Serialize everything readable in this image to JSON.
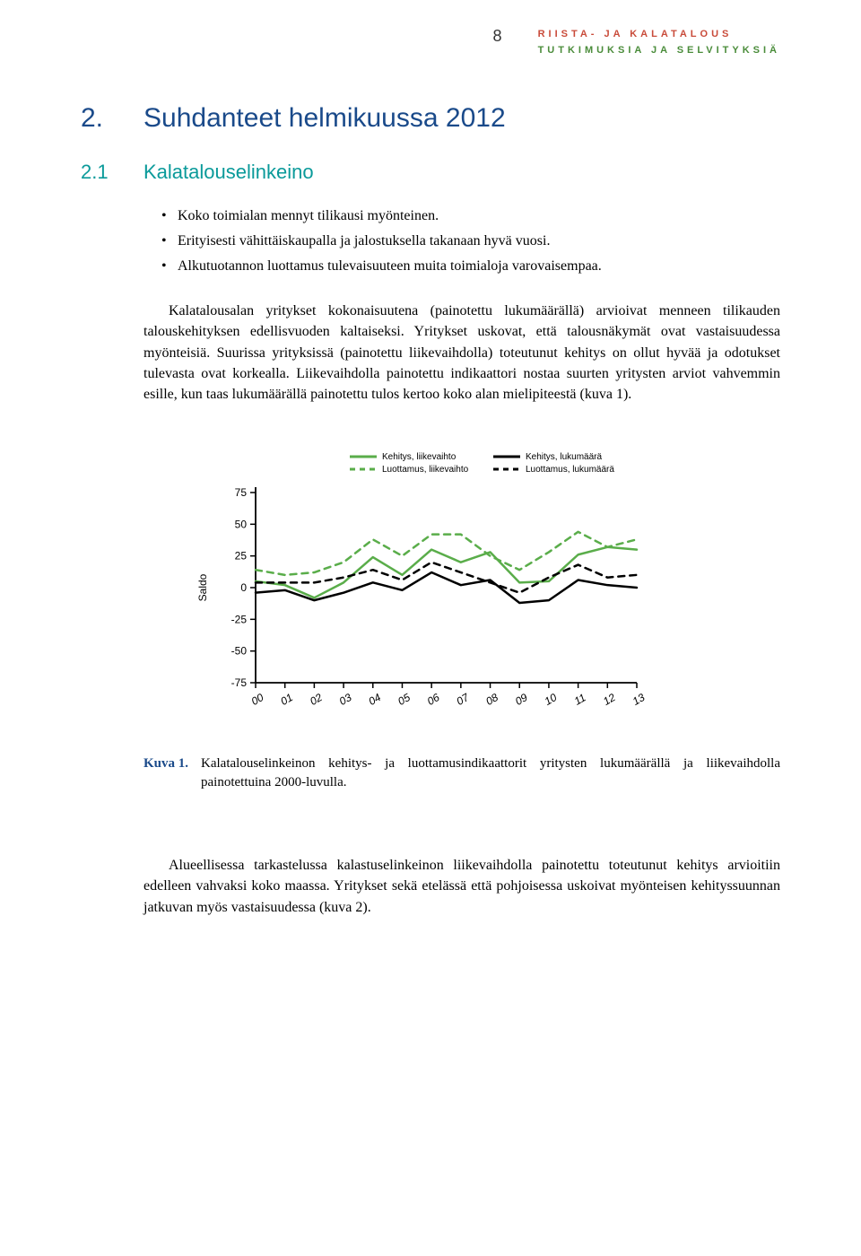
{
  "header": {
    "page_number": "8",
    "line1": "RIISTA- JA KALATALOUS",
    "line2": "TUTKIMUKSIA JA SELVITYKSIÄ"
  },
  "section": {
    "number": "2.",
    "title": "Suhdanteet helmikuussa 2012"
  },
  "subsection": {
    "number": "2.1",
    "title": "Kalatalouselinkeino"
  },
  "bullets": [
    "Koko toimialan mennyt tilikausi myönteinen.",
    "Erityisesti vähittäiskaupalla ja jalostuksella takanaan hyvä vuosi.",
    "Alkutuotannon luottamus tulevaisuuteen muita toimialoja varovaisempaa."
  ],
  "para1": "Kalatalousalan yritykset kokonaisuutena (painotettu lukumäärällä) arvioivat menneen tilikauden talouskehityksen edellisvuoden kaltaiseksi. Yritykset uskovat, että talousnäkymät ovat vastaisuudessa myönteisiä. Suurissa yrityksissä (painotettu liikevaihdolla) toteutunut kehitys on ollut hyvää ja odotukset tulevasta ovat korkealla. Liikevaihdolla painotettu indikaattori nostaa suurten yritysten arviot vahvemmin esille, kun taas lukumäärällä painotettu tulos kertoo koko alan mielipiteestä (kuva 1).",
  "chart": {
    "type": "line",
    "ylabel": "Saldo",
    "ylim": [
      -75,
      75
    ],
    "ytick_step": 25,
    "yticks": [
      75,
      50,
      25,
      0,
      -25,
      -50,
      -75
    ],
    "x_categories": [
      "00",
      "01",
      "02",
      "03",
      "04",
      "05",
      "06",
      "07",
      "08",
      "09",
      "10",
      "11",
      "12",
      "13"
    ],
    "legend": [
      {
        "label": "Kehitys, liikevaihto",
        "color": "#5aad4a",
        "dash": "solid"
      },
      {
        "label": "Luottamus, liikevaihto",
        "color": "#5aad4a",
        "dash": "dashed"
      },
      {
        "label": "Kehitys, lukumäärä",
        "color": "#000000",
        "dash": "solid"
      },
      {
        "label": "Luottamus, lukumäärä",
        "color": "#000000",
        "dash": "dashed"
      }
    ],
    "series": {
      "kehitys_liikevaihto": [
        5,
        2,
        -8,
        4,
        24,
        10,
        30,
        20,
        28,
        4,
        5,
        26,
        32,
        30
      ],
      "luottamus_liikevaihto": [
        14,
        10,
        12,
        20,
        38,
        25,
        42,
        42,
        25,
        14,
        28,
        44,
        32,
        38
      ],
      "kehitys_lukumaara": [
        -4,
        -2,
        -10,
        -4,
        4,
        -2,
        12,
        2,
        6,
        -12,
        -10,
        6,
        2,
        0
      ],
      "luottamus_lukumaara": [
        4,
        4,
        4,
        8,
        14,
        6,
        20,
        12,
        4,
        -4,
        8,
        18,
        8,
        10
      ]
    },
    "line_width": 2.5,
    "background_color": "#ffffff",
    "axis_color": "#000000",
    "label_fontsize": 12,
    "legend_fontsize": 10
  },
  "caption": {
    "label": "Kuva 1.",
    "text": "Kalatalouselinkeinon kehitys- ja luottamusindikaattorit yritysten lukumäärällä ja liikevaihdolla painotettuina 2000-luvulla."
  },
  "para2": "Alueellisessa tarkastelussa kalastuselinkeinon liikevaihdolla painotettu toteutunut kehitys arvioitiin edelleen vahvaksi koko maassa. Yritykset sekä etelässä että pohjoisessa uskoivat myönteisen kehityssuunnan jatkuvan myös vastaisuudessa (kuva 2)."
}
